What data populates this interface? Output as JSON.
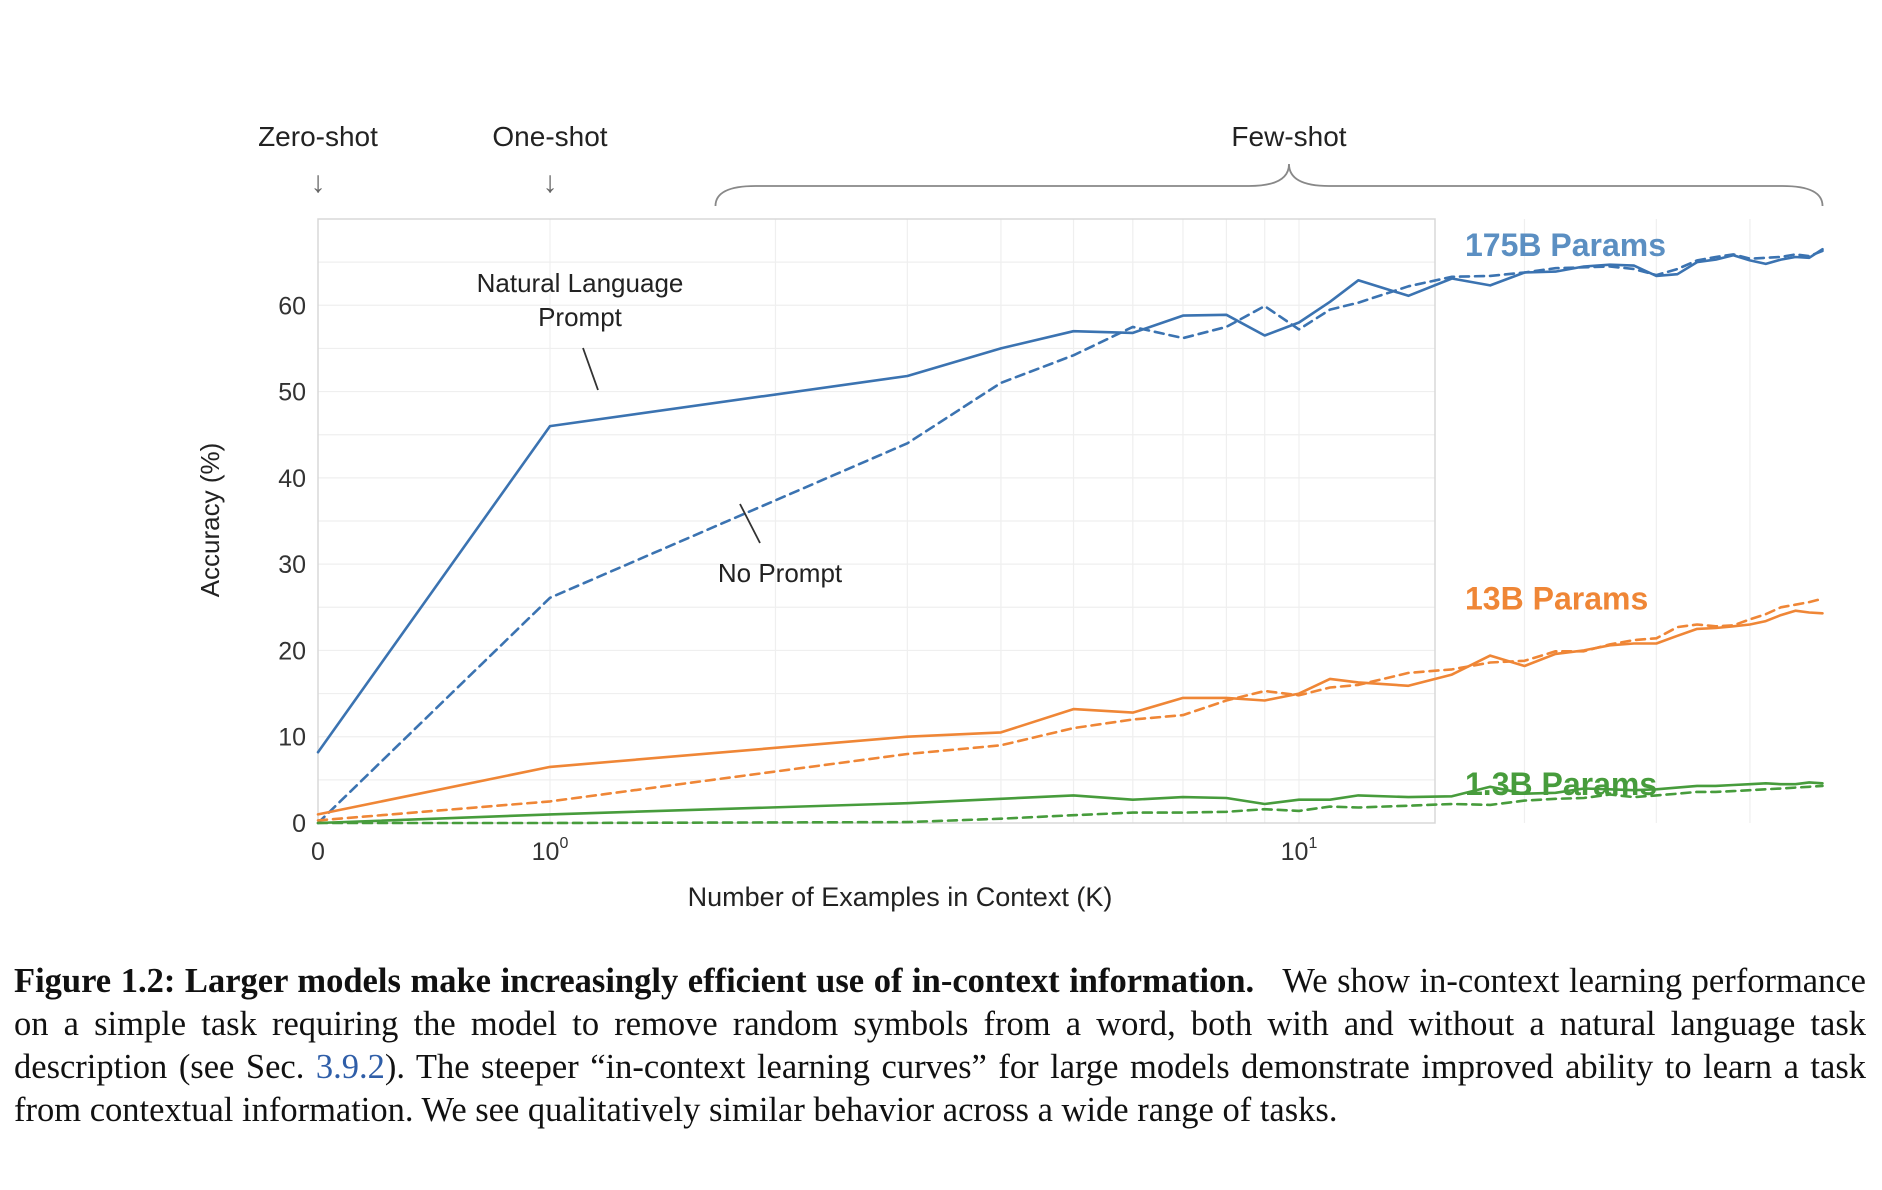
{
  "chart_data": {
    "type": "line",
    "xscale": "symlog",
    "xlim": [
      0,
      50
    ],
    "ylim": [
      0,
      70
    ],
    "xlabel": "Number of Examples in Context  (K)",
    "ylabel": "Accuracy (%)",
    "xticks": [
      {
        "value": 0,
        "base": "0",
        "exp": ""
      },
      {
        "value": 1,
        "base": "10",
        "exp": "0"
      },
      {
        "value": 10,
        "base": "10",
        "exp": "1"
      }
    ],
    "yticks": [
      0,
      10,
      20,
      30,
      40,
      50,
      60
    ],
    "regions": [
      {
        "label": "Zero-shot",
        "arrow": "↓",
        "at": 0
      },
      {
        "label": "One-shot",
        "arrow": "↓",
        "at": 1
      },
      {
        "label": "Few-shot",
        "from": 2,
        "to": 50
      }
    ],
    "annotations": [
      {
        "text_lines": [
          "Natural Language",
          "Prompt"
        ],
        "target_series": "175B natural language prompt"
      },
      {
        "text_lines": [
          "No Prompt"
        ],
        "target_series": "175B no prompt"
      }
    ],
    "series": [
      {
        "name": "175B natural language prompt",
        "group": "175B Params",
        "style": "solid",
        "color": "#3b73b1",
        "points": [
          [
            0,
            8.2
          ],
          [
            1,
            46
          ],
          [
            3,
            51.8
          ],
          [
            4,
            55
          ],
          [
            5,
            57
          ],
          [
            6,
            56.8
          ],
          [
            7,
            58.8
          ],
          [
            8,
            58.9
          ],
          [
            9,
            56.5
          ],
          [
            10,
            58
          ],
          [
            11,
            60.4
          ],
          [
            12,
            62.9
          ],
          [
            14,
            61.1
          ],
          [
            16,
            63.1
          ],
          [
            18,
            62.3
          ],
          [
            20,
            63.8
          ],
          [
            22,
            63.9
          ],
          [
            24,
            64.5
          ],
          [
            26,
            64.7
          ],
          [
            28,
            64.6
          ],
          [
            30,
            63.4
          ],
          [
            32,
            63.6
          ],
          [
            34,
            65
          ],
          [
            36,
            65.3
          ],
          [
            38,
            65.8
          ],
          [
            40,
            65.2
          ],
          [
            42,
            64.8
          ],
          [
            44,
            65.3
          ],
          [
            46,
            65.6
          ],
          [
            48,
            65.5
          ],
          [
            50,
            66.5
          ]
        ]
      },
      {
        "name": "175B no prompt",
        "group": "175B Params",
        "style": "dashed",
        "color": "#3b73b1",
        "points": [
          [
            0,
            0
          ],
          [
            1,
            26.1
          ],
          [
            3,
            44
          ],
          [
            4,
            51
          ],
          [
            5,
            54.2
          ],
          [
            6,
            57.5
          ],
          [
            7,
            56.2
          ],
          [
            8,
            57.5
          ],
          [
            9,
            59.9
          ],
          [
            10,
            57.2
          ],
          [
            11,
            59.5
          ],
          [
            12,
            60.3
          ],
          [
            14,
            62.2
          ],
          [
            16,
            63.3
          ],
          [
            18,
            63.4
          ],
          [
            20,
            63.8
          ],
          [
            22,
            64.3
          ],
          [
            24,
            64.4
          ],
          [
            26,
            64.5
          ],
          [
            28,
            64.2
          ],
          [
            30,
            63.5
          ],
          [
            32,
            64.2
          ],
          [
            34,
            65.2
          ],
          [
            36,
            65.6
          ],
          [
            38,
            65.9
          ],
          [
            40,
            65.4
          ],
          [
            42,
            65.5
          ],
          [
            44,
            65.6
          ],
          [
            46,
            65.9
          ],
          [
            48,
            65.7
          ],
          [
            50,
            66.3
          ]
        ]
      },
      {
        "name": "13B natural language prompt",
        "group": "13B Params",
        "style": "solid",
        "color": "#ef8636",
        "points": [
          [
            0,
            1
          ],
          [
            1,
            6.5
          ],
          [
            3,
            10
          ],
          [
            4,
            10.5
          ],
          [
            5,
            13.2
          ],
          [
            6,
            12.8
          ],
          [
            7,
            14.5
          ],
          [
            8,
            14.5
          ],
          [
            9,
            14.2
          ],
          [
            10,
            15
          ],
          [
            11,
            16.7
          ],
          [
            12,
            16.3
          ],
          [
            14,
            15.9
          ],
          [
            16,
            17.2
          ],
          [
            18,
            19.4
          ],
          [
            20,
            18.2
          ],
          [
            22,
            19.6
          ],
          [
            24,
            20
          ],
          [
            26,
            20.6
          ],
          [
            28,
            20.8
          ],
          [
            30,
            20.8
          ],
          [
            32,
            21.7
          ],
          [
            34,
            22.5
          ],
          [
            36,
            22.6
          ],
          [
            38,
            22.8
          ],
          [
            40,
            23
          ],
          [
            42,
            23.4
          ],
          [
            44,
            24.1
          ],
          [
            46,
            24.6
          ],
          [
            48,
            24.4
          ],
          [
            50,
            24.3
          ]
        ]
      },
      {
        "name": "13B no prompt",
        "group": "13B Params",
        "style": "dashed",
        "color": "#ef8636",
        "points": [
          [
            0,
            0.3
          ],
          [
            1,
            2.5
          ],
          [
            3,
            8
          ],
          [
            4,
            9
          ],
          [
            5,
            11
          ],
          [
            6,
            12
          ],
          [
            7,
            12.5
          ],
          [
            8,
            14.2
          ],
          [
            9,
            15.3
          ],
          [
            10,
            14.8
          ],
          [
            11,
            15.7
          ],
          [
            12,
            16
          ],
          [
            14,
            17.4
          ],
          [
            16,
            17.8
          ],
          [
            18,
            18.6
          ],
          [
            20,
            18.8
          ],
          [
            22,
            19.9
          ],
          [
            24,
            19.9
          ],
          [
            26,
            20.7
          ],
          [
            28,
            21.2
          ],
          [
            30,
            21.4
          ],
          [
            32,
            22.7
          ],
          [
            34,
            23
          ],
          [
            36,
            22.8
          ],
          [
            38,
            22.9
          ],
          [
            40,
            23.6
          ],
          [
            42,
            24.2
          ],
          [
            44,
            25
          ],
          [
            46,
            25.3
          ],
          [
            48,
            25.6
          ],
          [
            50,
            26
          ]
        ]
      },
      {
        "name": "1.3B natural language prompt",
        "group": "1.3B Params",
        "style": "solid",
        "color": "#479c3c",
        "points": [
          [
            0,
            0
          ],
          [
            1,
            1
          ],
          [
            3,
            2.3
          ],
          [
            4,
            2.8
          ],
          [
            5,
            3.2
          ],
          [
            6,
            2.7
          ],
          [
            7,
            3
          ],
          [
            8,
            2.9
          ],
          [
            9,
            2.2
          ],
          [
            10,
            2.7
          ],
          [
            11,
            2.7
          ],
          [
            12,
            3.2
          ],
          [
            14,
            3
          ],
          [
            16,
            3.1
          ],
          [
            18,
            4.2
          ],
          [
            20,
            3.4
          ],
          [
            22,
            3.5
          ],
          [
            24,
            4
          ],
          [
            26,
            3.9
          ],
          [
            28,
            3.8
          ],
          [
            30,
            3.9
          ],
          [
            32,
            4.1
          ],
          [
            34,
            4.3
          ],
          [
            36,
            4.3
          ],
          [
            38,
            4.4
          ],
          [
            40,
            4.5
          ],
          [
            42,
            4.6
          ],
          [
            44,
            4.5
          ],
          [
            46,
            4.5
          ],
          [
            48,
            4.7
          ],
          [
            50,
            4.6
          ]
        ]
      },
      {
        "name": "1.3B no prompt",
        "group": "1.3B Params",
        "style": "dashed",
        "color": "#479c3c",
        "points": [
          [
            0,
            0
          ],
          [
            1,
            0
          ],
          [
            3,
            0.1
          ],
          [
            4,
            0.5
          ],
          [
            5,
            0.9
          ],
          [
            6,
            1.2
          ],
          [
            7,
            1.2
          ],
          [
            8,
            1.3
          ],
          [
            9,
            1.6
          ],
          [
            10,
            1.4
          ],
          [
            11,
            1.9
          ],
          [
            12,
            1.8
          ],
          [
            14,
            2
          ],
          [
            16,
            2.2
          ],
          [
            18,
            2.1
          ],
          [
            20,
            2.6
          ],
          [
            22,
            2.8
          ],
          [
            24,
            2.9
          ],
          [
            26,
            3.3
          ],
          [
            28,
            3
          ],
          [
            30,
            3.2
          ],
          [
            32,
            3.4
          ],
          [
            34,
            3.6
          ],
          [
            36,
            3.6
          ],
          [
            38,
            3.7
          ],
          [
            40,
            3.8
          ],
          [
            42,
            3.9
          ],
          [
            44,
            4
          ],
          [
            46,
            4.1
          ],
          [
            48,
            4.2
          ],
          [
            50,
            4.3
          ]
        ]
      }
    ],
    "series_labels": [
      {
        "label": "175B Params",
        "color": "#5b8fc2",
        "y": 67
      },
      {
        "label": "13B Params",
        "color": "#ef8636",
        "y": 26
      },
      {
        "label": "1.3B Params",
        "color": "#479c3c",
        "y": 4.5
      }
    ]
  },
  "caption": {
    "title": "Figure 1.2: Larger models make increasingly efficient use of in-context information.",
    "body_before_link": "We show in-context learning performance on a simple task requiring the model to remove random symbols from a word, both with and without a natural language task description (see Sec. ",
    "link_text": "3.9.2",
    "body_after_link": "). The steeper “in-context learning curves” for large models demonstrate improved ability to learn a task from contextual information. We see qualitatively similar behavior across a wide range of tasks."
  }
}
